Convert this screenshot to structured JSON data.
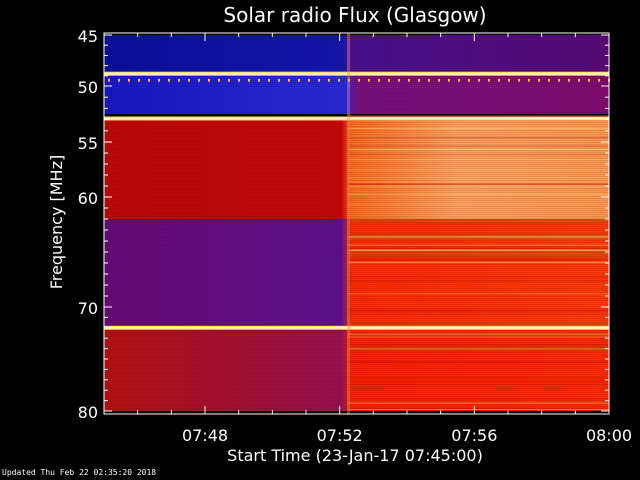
{
  "chart_data": {
    "type": "heatmap",
    "title": "Solar radio Flux (Glasgow)",
    "ylabel": "Frequency [MHz]",
    "xlabel": "Start Time (23-Jan-17 07:45:00)",
    "y_ticks": [
      "45",
      "50",
      "55",
      "60",
      "70",
      "80"
    ],
    "y_tick_values": [
      45,
      50,
      55,
      60,
      70,
      80
    ],
    "x_ticks": [
      "07:48",
      "07:52",
      "07:56",
      "08:00"
    ],
    "x_tick_values_minutes": [
      3,
      7,
      11,
      15
    ],
    "xlim_minutes": [
      0,
      15
    ],
    "ylim_mhz": [
      45,
      80
    ],
    "burst_onset_time": "07:52:15",
    "colormap": [
      "#0a0a6e",
      "#2020c8",
      "#7a0080",
      "#c80000",
      "#ff3c00",
      "#ffa050",
      "#ffe8b0"
    ],
    "bright_bands_mhz": [
      48.8,
      52.9,
      72.0
    ],
    "regions": [
      {
        "freq_mhz": [
          45,
          48.5
        ],
        "before": "blue",
        "after": "purple"
      },
      {
        "freq_mhz": [
          48.5,
          52.5
        ],
        "before": "blue",
        "after": "purple"
      },
      {
        "freq_mhz": [
          53,
          62
        ],
        "before": "red",
        "after": "light orange"
      },
      {
        "freq_mhz": [
          62,
          72
        ],
        "before": "purple-red",
        "after": "orange-red"
      },
      {
        "freq_mhz": [
          72,
          80
        ],
        "before": "red",
        "after": "orange-red"
      }
    ]
  },
  "footer": "Updated Thu Feb 22 02:35:20 2018"
}
